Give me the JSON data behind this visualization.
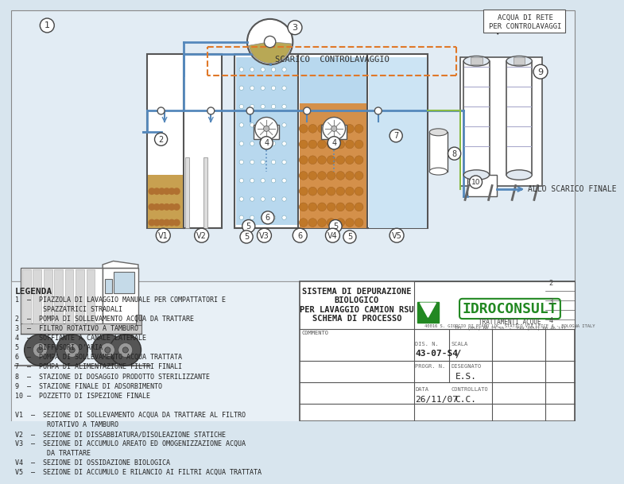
{
  "bg_color": "#d8e5ee",
  "drawing_bg": "#dce8f0",
  "legend_items_1": [
    "1  –  PIAZZOLA DI LAVAGGIO MANUALE PER COMPATTATORI E",
    "       SPAZZATRICI STRADALI",
    "2  –  POMPA DI SOLLEVAMENTO ACQUA DA TRATTARE",
    "3  –  FILTRO ROTATIVO A TAMBURO",
    "4  –  SOFFIANTE A CANALE LATERALE",
    "5  –  DIFFUSORI D’ARIA",
    "6  –  POMPA DI SOLLEVAMENTO ACQUA TRATTATA",
    "7  –  POMPA DI ALIMENTAZIONE FILTRI FINALI",
    "8  –  STAZIONE DI DOSAGGIO PRODOTTO STERILIZZANTE",
    "9  –  STAZIONE FINALE DI ADSORBIMENTO",
    "10 –  POZZETTO DI ISPEZIONE FINALE"
  ],
  "legend_items_2": [
    "V1  –  SEZIONE DI SOLLEVAMENTO ACQUA DA TRATTARE AL FILTRO",
    "        ROTATIVO A TAMBURO",
    "V2  –  SEZIONE DI DISSABBIATURA/DISOLEAZIONE STATICHE",
    "V3  –  SEZIONE DI ACCUMULO AREATO ED OMOGENIZZAZIONE ACQUA",
    "        DA TRATTARE",
    "V4  –  SEZIONE DI OSSIDAZIONE BIOLOGICA",
    "V5  –  SEZIONE DI ACCUMULO E RILANCIO AI FILTRI ACQUA TRATTATA"
  ],
  "title_subject": "SISTEMA DI DEPURAZIONE\nBIOLOGICO\nPER LAVAGGIO CAMION RSU\nSCHEMA DI PROCESSO",
  "doc_n": "43-07-S4",
  "scala": "/",
  "disegnato": "E.S.",
  "data_val": "26/11/07",
  "controllato": "C.C.",
  "company": "IDROCONSULT",
  "company_sub": "TRATTAMENTI ACQUE",
  "company_addr1": "40016 S. GIORGIO DI PIANO LOC. STATICÒ VIA LEICE 4 - BOLOGNA ITALY",
  "company_addr2": "TEL. (051) 66 23 50  -  FAX (051) 66 46 137",
  "scarico_label": "SCARICO  CONTROLAVAGGIO",
  "acqua_label": "ACQUA DI RETE\nPER CONTROLAVAGGI",
  "scarico_finale": "ALLO SCARICO FINALE",
  "legenda": "LEGENDA",
  "commentto": "COMMENTO"
}
